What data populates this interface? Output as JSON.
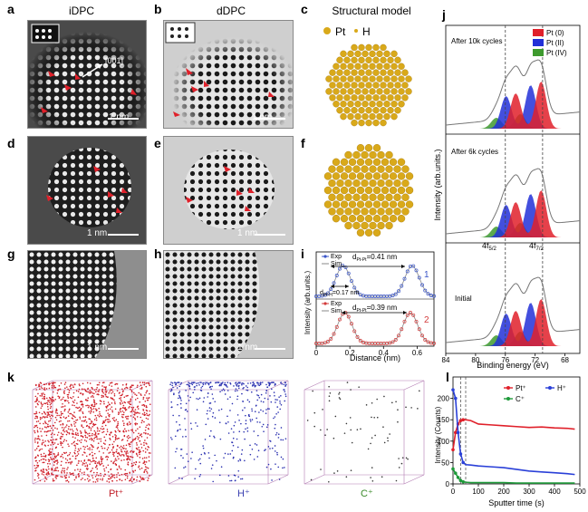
{
  "panels": {
    "a": {
      "label": "a",
      "title": "iDPC",
      "direction": "[001]",
      "scale": "1 nm"
    },
    "b": {
      "label": "b",
      "title": "dDPC",
      "scale": "1 nm"
    },
    "c": {
      "label": "c",
      "title": "Structural model",
      "legend_pt": "Pt",
      "legend_h": "H"
    },
    "d": {
      "label": "d",
      "scale": "1 nm"
    },
    "e": {
      "label": "e",
      "scale": "1 nm"
    },
    "f": {
      "label": "f"
    },
    "g": {
      "label": "g",
      "scale": "1 nm"
    },
    "h": {
      "label": "h",
      "scale": "1 nm"
    },
    "i": {
      "label": "i"
    },
    "j": {
      "label": "j"
    },
    "k": {
      "label": "k",
      "pt": "Pt⁺",
      "h": "H⁺",
      "c": "C⁺"
    },
    "l": {
      "label": "l"
    }
  },
  "chart_data": [
    {
      "id": "i",
      "type": "line",
      "ylabel": "Intensity (arb.units.)",
      "xlabel": "Distance (nm)",
      "xlim": [
        0,
        0.7
      ],
      "xticks": [
        "0",
        "0.2",
        "0.4",
        "0.6"
      ],
      "top": {
        "number": "1",
        "legend": [
          "Exp",
          "Sim"
        ],
        "d_ptpt": "d",
        "d_ptpt_sub": "Pt-Pt",
        "d_ptpt_val": "=0.41 nm",
        "d_pth": "d",
        "d_pth_sub": "Pt-H",
        "d_pth_val": "=0.17 nm"
      },
      "bottom": {
        "number": "2",
        "legend": [
          "Exp",
          "Sim"
        ],
        "d_ptpt": "d",
        "d_ptpt_sub": "Pt-Pt",
        "d_ptpt_val": "=0.39 nm"
      },
      "colors": {
        "top": "#3a55c8",
        "bottom": "#d33a3a"
      }
    },
    {
      "id": "j",
      "type": "area",
      "ylabel": "Intensity (arb.units.)",
      "xlabel": "Binding energy (eV)",
      "xlim": [
        84,
        66
      ],
      "xticks": [
        "84",
        "80",
        "76",
        "72",
        "68"
      ],
      "legend": [
        {
          "name": "Pt (0)",
          "color": "#e0202a"
        },
        {
          "name": "Pt (II)",
          "color": "#2230d8"
        },
        {
          "name": "Pt (IV)",
          "color": "#3e9a2e"
        }
      ],
      "spectra": [
        {
          "label": "After 10k cycles"
        },
        {
          "label": "After 6k cycles"
        },
        {
          "label": "Initial",
          "peak1": "4f",
          "peak1_sub": "5/2",
          "peak2": "4f",
          "peak2_sub": "7/2"
        }
      ]
    },
    {
      "id": "l",
      "type": "line",
      "ylabel": "Intensity (Counts)",
      "xlabel": "Sputter time (s)",
      "xlim": [
        0,
        500
      ],
      "ylim": [
        0,
        250
      ],
      "xticks": [
        "0",
        "100",
        "200",
        "300",
        "400",
        "500"
      ],
      "yticks": [
        "0",
        "50",
        "100",
        "150",
        "200"
      ],
      "series": [
        {
          "name": "Pt⁺",
          "color": "#e0202a",
          "x": [
            0,
            10,
            20,
            30,
            40,
            50,
            70,
            100,
            150,
            200,
            250,
            300,
            350,
            400,
            450,
            480
          ],
          "y": [
            80,
            120,
            140,
            148,
            150,
            150,
            148,
            140,
            138,
            136,
            134,
            132,
            133,
            131,
            130,
            128
          ]
        },
        {
          "name": "H⁺",
          "color": "#2a40d8",
          "x": [
            0,
            10,
            20,
            30,
            40,
            50,
            70,
            100,
            150,
            200,
            250,
            300,
            350,
            400,
            450,
            480
          ],
          "y": [
            220,
            200,
            120,
            70,
            50,
            45,
            44,
            42,
            40,
            38,
            34,
            30,
            28,
            26,
            24,
            22
          ]
        },
        {
          "name": "C⁺",
          "color": "#1e9a3a",
          "x": [
            0,
            10,
            20,
            30,
            40,
            50,
            70,
            100,
            150,
            200,
            250,
            300,
            350,
            400,
            450,
            480
          ],
          "y": [
            35,
            25,
            15,
            8,
            5,
            4,
            3,
            3,
            3,
            3,
            2,
            2,
            2,
            2,
            2,
            2
          ]
        }
      ]
    }
  ]
}
